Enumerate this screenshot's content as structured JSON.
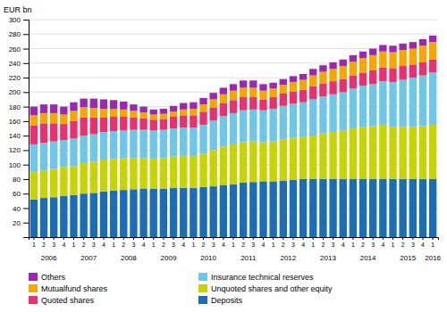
{
  "chart_data": {
    "type": "bar",
    "stacked": true,
    "grid": true,
    "legend": "bottom",
    "y_label": "EUR bn",
    "ylim": [
      0,
      300
    ],
    "yticks": [
      20,
      40,
      60,
      80,
      100,
      120,
      140,
      160,
      180,
      200,
      220,
      240,
      260,
      280,
      300
    ],
    "categories": [
      "1",
      "2",
      "3",
      "4",
      "1",
      "2",
      "3",
      "4",
      "1",
      "2",
      "3",
      "4",
      "1",
      "2",
      "3",
      "4",
      "1",
      "2",
      "3",
      "4",
      "1",
      "2",
      "3",
      "4",
      "1",
      "2",
      "3",
      "4",
      "1",
      "2",
      "3",
      "4",
      "1",
      "2",
      "3",
      "4",
      "1",
      "2",
      "3",
      "4",
      "1"
    ],
    "annotations": [
      {
        "text": "2006",
        "x": 1.5
      },
      {
        "text": "2007",
        "x": 5.5
      },
      {
        "text": "2008",
        "x": 9.5
      },
      {
        "text": "2009",
        "x": 13.5
      },
      {
        "text": "2010",
        "x": 17.5
      },
      {
        "text": "2011",
        "x": 21.5
      },
      {
        "text": "2012",
        "x": 25.5
      },
      {
        "text": "2013",
        "x": 29.5
      },
      {
        "text": "2014",
        "x": 33.5
      },
      {
        "text": "2015",
        "x": 37.5
      },
      {
        "text": "2016",
        "x": 40
      }
    ],
    "series": [
      {
        "name": "Deposits",
        "color": "#1b6eb5",
        "values": [
          52,
          54,
          55,
          57,
          58,
          60,
          61,
          63,
          64,
          65,
          66,
          67,
          67,
          67,
          68,
          68,
          68,
          69,
          70,
          72,
          73,
          75,
          76,
          77,
          77,
          78,
          79,
          80,
          80,
          80,
          80,
          80,
          80,
          80,
          80,
          80,
          80,
          80,
          80,
          80,
          80
        ]
      },
      {
        "name": "Unquoted shares and other equity",
        "color": "#c8d400",
        "values": [
          38,
          38,
          39,
          40,
          40,
          42,
          43,
          44,
          44,
          44,
          43,
          42,
          41,
          42,
          43,
          44,
          44,
          46,
          50,
          53,
          55,
          56,
          56,
          54,
          55,
          57,
          58,
          58,
          60,
          63,
          65,
          67,
          70,
          72,
          73,
          75,
          72,
          72,
          72,
          73,
          75
        ]
      },
      {
        "name": "Insurance technical reserves",
        "color": "#6ec6e8",
        "values": [
          38,
          38,
          38,
          37,
          38,
          38,
          38,
          38,
          38,
          38,
          39,
          39,
          39,
          39,
          39,
          39,
          39,
          40,
          41,
          42,
          43,
          44,
          44,
          44,
          45,
          46,
          47,
          48,
          50,
          51,
          52,
          53,
          55,
          57,
          58,
          60,
          62,
          65,
          68,
          70,
          72
        ]
      },
      {
        "name": "Quoted shares",
        "color": "#e8316e",
        "values": [
          26,
          27,
          25,
          22,
          24,
          25,
          23,
          20,
          20,
          19,
          17,
          16,
          15,
          15,
          16,
          17,
          17,
          18,
          18,
          18,
          18,
          18,
          17,
          15,
          16,
          17,
          17,
          17,
          18,
          18,
          18,
          18,
          18,
          18,
          19,
          19,
          19,
          19,
          18,
          18,
          18
        ]
      },
      {
        "name": "Mutualfund shares",
        "color": "#f7a600",
        "values": [
          14,
          14,
          14,
          13,
          14,
          14,
          13,
          12,
          11,
          10,
          9,
          8,
          7,
          7,
          7,
          8,
          9,
          10,
          11,
          12,
          13,
          13,
          13,
          12,
          12,
          12,
          13,
          14,
          15,
          16,
          17,
          18,
          19,
          20,
          21,
          22,
          22,
          22,
          22,
          23,
          24
        ]
      },
      {
        "name": "Others",
        "color": "#9c27b0",
        "values": [
          12,
          12,
          12,
          11,
          12,
          12,
          13,
          13,
          12,
          11,
          9,
          8,
          7,
          7,
          8,
          9,
          9,
          9,
          9,
          9,
          9,
          10,
          10,
          9,
          8,
          8,
          8,
          8,
          9,
          9,
          9,
          9,
          9,
          9,
          9,
          9,
          9,
          9,
          9,
          9,
          9
        ]
      }
    ]
  }
}
